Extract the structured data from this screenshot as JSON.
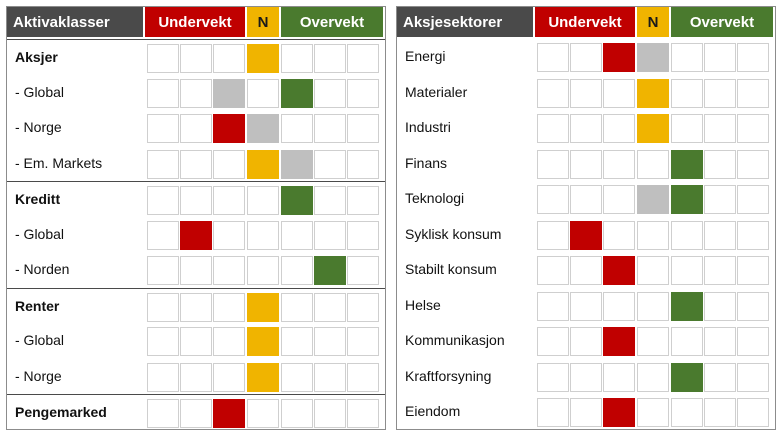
{
  "left_table": {
    "title": "Aktivaklasser",
    "header_under": "Undervekt",
    "header_neutral": "N",
    "header_over": "Overvekt",
    "rows": [
      {
        "label": "Aksjer",
        "bold": true,
        "group_start": true,
        "cells": [
          "",
          "",
          "",
          "neutral",
          "",
          "",
          ""
        ]
      },
      {
        "label": "- Global",
        "bold": false,
        "group_start": false,
        "cells": [
          "",
          "",
          "gray",
          "",
          "over",
          "",
          ""
        ]
      },
      {
        "label": "- Norge",
        "bold": false,
        "group_start": false,
        "cells": [
          "",
          "",
          "under",
          "gray",
          "",
          "",
          ""
        ]
      },
      {
        "label": "- Em. Markets",
        "bold": false,
        "group_start": false,
        "cells": [
          "",
          "",
          "",
          "neutral",
          "gray",
          "",
          ""
        ]
      },
      {
        "label": "Kreditt",
        "bold": true,
        "group_start": true,
        "cells": [
          "",
          "",
          "",
          "",
          "over",
          "",
          ""
        ]
      },
      {
        "label": "- Global",
        "bold": false,
        "group_start": false,
        "cells": [
          "",
          "under",
          "",
          "",
          "",
          "",
          ""
        ]
      },
      {
        "label": "- Norden",
        "bold": false,
        "group_start": false,
        "cells": [
          "",
          "",
          "",
          "",
          "",
          "over",
          ""
        ]
      },
      {
        "label": "Renter",
        "bold": true,
        "group_start": true,
        "cells": [
          "",
          "",
          "",
          "neutral",
          "",
          "",
          ""
        ]
      },
      {
        "label": "- Global",
        "bold": false,
        "group_start": false,
        "cells": [
          "",
          "",
          "",
          "neutral",
          "",
          "",
          ""
        ]
      },
      {
        "label": "- Norge",
        "bold": false,
        "group_start": false,
        "cells": [
          "",
          "",
          "",
          "neutral",
          "",
          "",
          ""
        ]
      },
      {
        "label": "Pengemarked",
        "bold": true,
        "group_start": true,
        "cells": [
          "",
          "",
          "under",
          "",
          "",
          "",
          ""
        ]
      }
    ]
  },
  "right_table": {
    "title": "Aksjesektorer",
    "header_under": "Undervekt",
    "header_neutral": "N",
    "header_over": "Overvekt",
    "rows": [
      {
        "label": "Energi",
        "bold": false,
        "group_start": false,
        "cells": [
          "",
          "",
          "under",
          "gray",
          "",
          "",
          ""
        ]
      },
      {
        "label": "Materialer",
        "bold": false,
        "group_start": false,
        "cells": [
          "",
          "",
          "",
          "neutral",
          "",
          "",
          ""
        ]
      },
      {
        "label": "Industri",
        "bold": false,
        "group_start": false,
        "cells": [
          "",
          "",
          "",
          "neutral",
          "",
          "",
          ""
        ]
      },
      {
        "label": "Finans",
        "bold": false,
        "group_start": false,
        "cells": [
          "",
          "",
          "",
          "",
          "over",
          "",
          ""
        ]
      },
      {
        "label": "Teknologi",
        "bold": false,
        "group_start": false,
        "cells": [
          "",
          "",
          "",
          "gray",
          "over",
          "",
          ""
        ]
      },
      {
        "label": "Syklisk konsum",
        "bold": false,
        "group_start": false,
        "cells": [
          "",
          "under",
          "",
          "",
          "",
          "",
          ""
        ]
      },
      {
        "label": "Stabilt konsum",
        "bold": false,
        "group_start": false,
        "cells": [
          "",
          "",
          "under",
          "",
          "",
          "",
          ""
        ]
      },
      {
        "label": "Helse",
        "bold": false,
        "group_start": false,
        "cells": [
          "",
          "",
          "",
          "",
          "over",
          "",
          ""
        ]
      },
      {
        "label": "Kommunikasjon",
        "bold": false,
        "group_start": false,
        "cells": [
          "",
          "",
          "under",
          "",
          "",
          "",
          ""
        ]
      },
      {
        "label": "Kraftforsyning",
        "bold": false,
        "group_start": false,
        "cells": [
          "",
          "",
          "",
          "",
          "over",
          "",
          ""
        ]
      },
      {
        "label": "Eiendom",
        "bold": false,
        "group_start": false,
        "cells": [
          "",
          "",
          "under",
          "",
          "",
          "",
          ""
        ]
      }
    ]
  },
  "colors": {
    "under": "#c00000",
    "neutral": "#f0b400",
    "over": "#4a7a2e",
    "gray": "#bfbfbf",
    "header_dark": "#4a4a4a"
  }
}
